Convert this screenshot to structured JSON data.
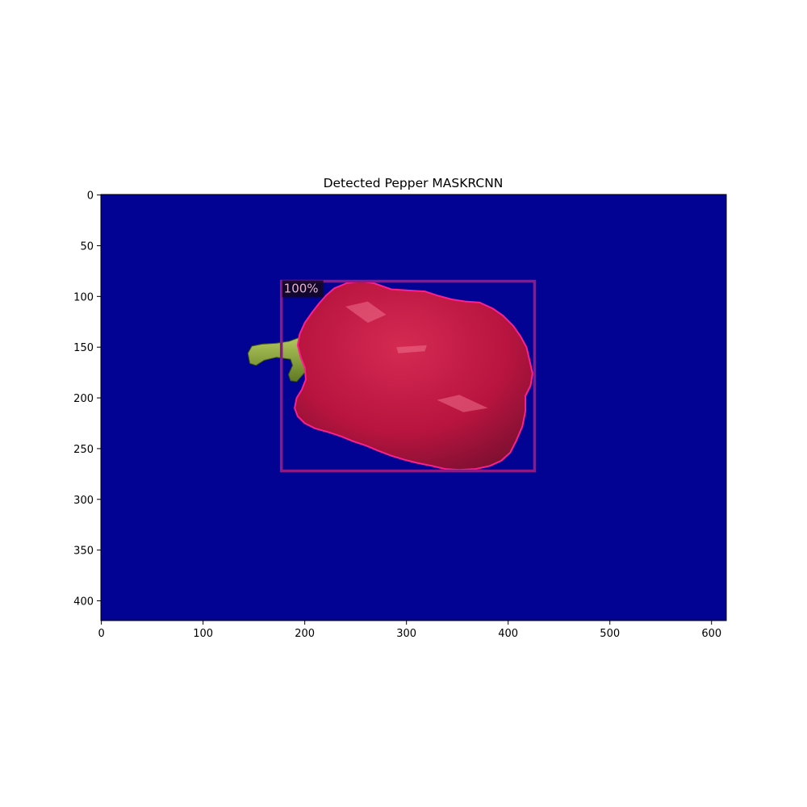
{
  "chart_data": {
    "type": "image",
    "title": "Detected Pepper MASKRCNN",
    "xlabel": "",
    "ylabel": "",
    "xlim": [
      -0.5,
      614.5
    ],
    "ylim": [
      419.5,
      -0.5
    ],
    "x_ticks": [
      0,
      100,
      200,
      300,
      400,
      500,
      600
    ],
    "y_ticks": [
      0,
      50,
      100,
      150,
      200,
      250,
      300,
      350,
      400
    ],
    "grid": false,
    "background_color": "#030393",
    "detections": [
      {
        "label": "100%",
        "score": 1.0,
        "bbox": {
          "x0": 177,
          "y0": 85,
          "x1": 426,
          "y1": 272
        },
        "box_color": "#8b1a86",
        "mask_outline_color": "#ff1f8c",
        "mask_fill_color": "#c21846",
        "label_bg_color": "#14081c",
        "label_text_color": "#e8b4c8",
        "mask_outline": [
          [
            255,
            85
          ],
          [
            268,
            87
          ],
          [
            285,
            93
          ],
          [
            300,
            94
          ],
          [
            318,
            95
          ],
          [
            330,
            99
          ],
          [
            345,
            103
          ],
          [
            358,
            105
          ],
          [
            372,
            106
          ],
          [
            385,
            112
          ],
          [
            395,
            119
          ],
          [
            405,
            129
          ],
          [
            412,
            139
          ],
          [
            418,
            150
          ],
          [
            421,
            163
          ],
          [
            424,
            176
          ],
          [
            422,
            188
          ],
          [
            417,
            198
          ],
          [
            417,
            213
          ],
          [
            414,
            228
          ],
          [
            408,
            242
          ],
          [
            402,
            254
          ],
          [
            393,
            262
          ],
          [
            382,
            267
          ],
          [
            368,
            270
          ],
          [
            352,
            271
          ],
          [
            338,
            270
          ],
          [
            325,
            267
          ],
          [
            310,
            264
          ],
          [
            298,
            261
          ],
          [
            285,
            257
          ],
          [
            272,
            252
          ],
          [
            260,
            247
          ],
          [
            248,
            243
          ],
          [
            236,
            238
          ],
          [
            224,
            234
          ],
          [
            210,
            230
          ],
          [
            200,
            225
          ],
          [
            193,
            218
          ],
          [
            190,
            210
          ],
          [
            192,
            200
          ],
          [
            197,
            192
          ],
          [
            201,
            182
          ],
          [
            200,
            170
          ],
          [
            196,
            160
          ],
          [
            193,
            148
          ],
          [
            195,
            137
          ],
          [
            200,
            126
          ],
          [
            207,
            116
          ],
          [
            214,
            107
          ],
          [
            221,
            99
          ],
          [
            229,
            92
          ],
          [
            241,
            87
          ]
        ],
        "stem": [
          [
            144,
            156
          ],
          [
            148,
            149
          ],
          [
            158,
            147
          ],
          [
            172,
            146
          ],
          [
            185,
            144
          ],
          [
            196,
            140
          ],
          [
            206,
            137
          ],
          [
            213,
            141
          ],
          [
            216,
            150
          ],
          [
            212,
            160
          ],
          [
            206,
            166
          ],
          [
            200,
            175
          ],
          [
            192,
            184
          ],
          [
            186,
            183
          ],
          [
            184,
            177
          ],
          [
            188,
            168
          ],
          [
            186,
            162
          ],
          [
            172,
            160
          ],
          [
            160,
            163
          ],
          [
            152,
            168
          ],
          [
            146,
            166
          ]
        ]
      }
    ]
  }
}
